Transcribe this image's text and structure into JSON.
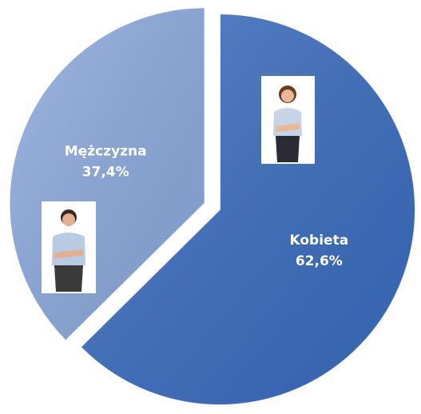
{
  "chart_data": {
    "type": "pie",
    "categories": [
      "Kobieta",
      "Mężczyzna"
    ],
    "values": [
      62.6,
      37.4
    ],
    "value_labels": [
      "62,6%",
      "37,4%"
    ],
    "colors": [
      "#3a6cbf",
      "#8ba8dc"
    ]
  }
}
